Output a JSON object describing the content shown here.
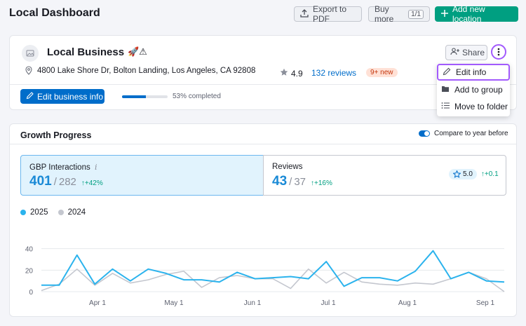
{
  "page": {
    "title": "Local Dashboard"
  },
  "header": {
    "export_label": "Export to PDF",
    "buy_label": "Buy more",
    "buy_count": "1/1",
    "add_label": "Add new location",
    "add_color": "#009f81"
  },
  "business": {
    "name": "Local Business",
    "emoji": "🚀⚠",
    "address": "4800 Lake Shore Dr, Bolton Landing, Los Angeles, CA 92808",
    "rating": "4.9",
    "reviews": "132 reviews",
    "new_badge": "9+ new",
    "share_label": "Share",
    "edit_label": "Edit business info",
    "progress_fraction": 0.53,
    "progress_label": "53% completed"
  },
  "menu": {
    "items": [
      {
        "label": "Edit info",
        "icon": "pencil-icon"
      },
      {
        "label": "Add to group",
        "icon": "folder-icon"
      },
      {
        "label": "Move to folder",
        "icon": "list-icon"
      }
    ]
  },
  "growth": {
    "title": "Growth Progress",
    "compare_label": "Compare to year before",
    "metrics": [
      {
        "label": "GBP Interactions",
        "current": "401",
        "sep": "/",
        "previous": "282",
        "delta": "↑+42%"
      },
      {
        "label": "Reviews",
        "current": "43",
        "sep": "/",
        "previous": "37",
        "delta": "↑+16%",
        "rating": "5.0",
        "rating_delta": "↑+0.1"
      }
    ],
    "legend": [
      {
        "label": "2025",
        "color": "#2bb3ed"
      },
      {
        "label": "2024",
        "color": "#c4c7cf"
      }
    ]
  },
  "chart_data": {
    "type": "line",
    "x_tick_labels": [
      "Apr 1",
      "May 1",
      "Jun 1",
      "Jul 1",
      "Aug 1",
      "Sep 1"
    ],
    "y_ticks": [
      0,
      20,
      40
    ],
    "ylim": [
      0,
      45
    ],
    "grid": true,
    "series": [
      {
        "name": "2025",
        "color": "#2bb3ed",
        "values": [
          6,
          6,
          34,
          7,
          21,
          10,
          21,
          17,
          11,
          11,
          9,
          18,
          12,
          13,
          14,
          12,
          28,
          5,
          13,
          13,
          10,
          19,
          38,
          12,
          18,
          10,
          9
        ]
      },
      {
        "name": "2024",
        "color": "#c4c7cf",
        "values": [
          1,
          7,
          21,
          6,
          17,
          8,
          11,
          16,
          19,
          4,
          13,
          15,
          12,
          12,
          3,
          21,
          8,
          18,
          9,
          7,
          6,
          8,
          7,
          12,
          18,
          12,
          0
        ]
      }
    ]
  }
}
